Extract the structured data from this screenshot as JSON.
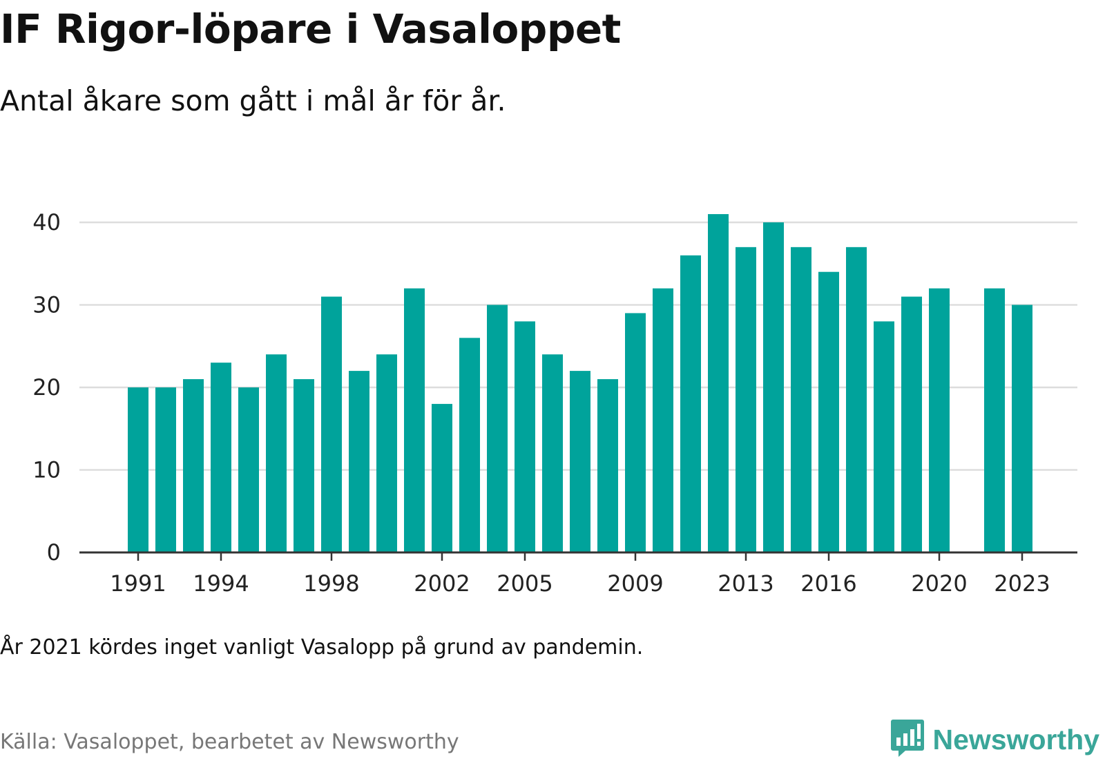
{
  "title": "IF Rigor-löpare i Vasaloppet",
  "subtitle": "Antal åkare som gått i mål år för år.",
  "note": "År 2021 kördes inget vanligt Vasalopp på grund av pandemin.",
  "source": "Källa: Vasaloppet, bearbetet av Newsworthy",
  "brand": {
    "name": "Newsworthy",
    "icon": "newsworthy-logo-icon",
    "color": "#3aa699"
  },
  "colors": {
    "bar": "#00a39b",
    "grid": "#dddddd",
    "axis": "#333333"
  },
  "chart_data": {
    "type": "bar",
    "categories": [
      1991,
      1992,
      1993,
      1994,
      1995,
      1996,
      1997,
      1998,
      1999,
      2000,
      2001,
      2002,
      2003,
      2004,
      2005,
      2006,
      2007,
      2008,
      2009,
      2010,
      2011,
      2012,
      2013,
      2014,
      2015,
      2016,
      2017,
      2018,
      2019,
      2020,
      2021,
      2022,
      2023
    ],
    "values": [
      20,
      20,
      21,
      23,
      20,
      24,
      21,
      31,
      22,
      24,
      32,
      18,
      26,
      30,
      28,
      24,
      22,
      21,
      29,
      32,
      36,
      41,
      37,
      40,
      37,
      34,
      37,
      28,
      31,
      32,
      null,
      32,
      30
    ],
    "x_tick_labels": [
      "1991",
      "1994",
      "1998",
      "2002",
      "2005",
      "2009",
      "2013",
      "2016",
      "2020",
      "2023"
    ],
    "y_ticks": [
      0,
      10,
      20,
      30,
      40
    ],
    "ylim": [
      0,
      41
    ],
    "grid": true,
    "legend": false
  }
}
